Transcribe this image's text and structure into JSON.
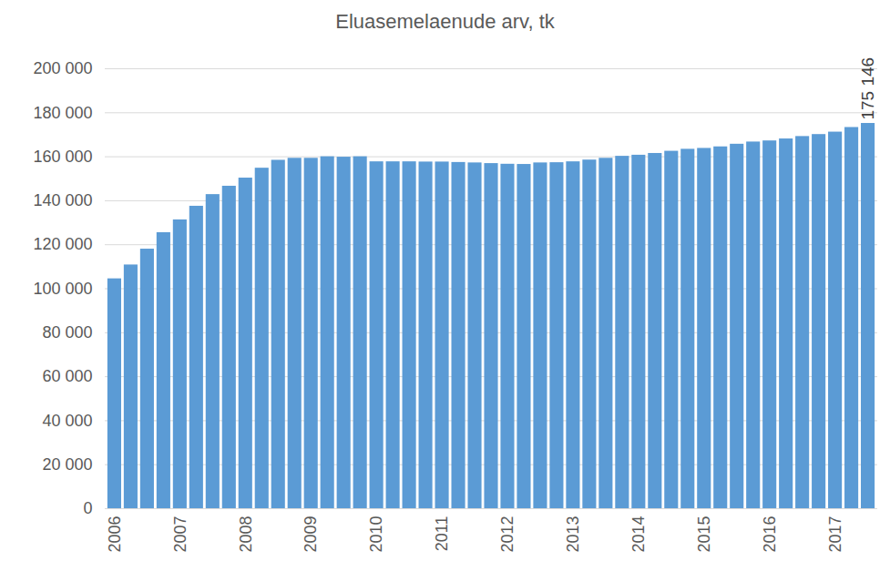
{
  "chart_data": {
    "type": "bar",
    "title": "Eluasemelaenude arv, tk",
    "categories": [
      "2006",
      null,
      null,
      null,
      "2007",
      null,
      null,
      null,
      "2008",
      null,
      null,
      null,
      "2009",
      null,
      null,
      null,
      "2010",
      null,
      null,
      null,
      "2011",
      null,
      null,
      null,
      "2012",
      null,
      null,
      null,
      "2013",
      null,
      null,
      null,
      "2014",
      null,
      null,
      null,
      "2015",
      null,
      null,
      null,
      "2016",
      null,
      null,
      null,
      "2017",
      null,
      null
    ],
    "values": [
      104500,
      110800,
      118000,
      125500,
      131300,
      137500,
      142800,
      146600,
      150300,
      154800,
      158400,
      159300,
      159300,
      160000,
      159800,
      160000,
      157700,
      157700,
      157700,
      157600,
      157600,
      157400,
      157200,
      156900,
      156600,
      156500,
      157200,
      157300,
      157700,
      158500,
      159300,
      160200,
      160700,
      161500,
      162500,
      163400,
      163800,
      164500,
      165700,
      166700,
      167200,
      168100,
      169200,
      170100,
      171200,
      173300,
      175146
    ],
    "value_labels": [
      null,
      null,
      null,
      null,
      null,
      null,
      null,
      null,
      null,
      null,
      null,
      null,
      null,
      null,
      null,
      null,
      null,
      null,
      null,
      null,
      null,
      null,
      null,
      null,
      null,
      null,
      null,
      null,
      null,
      null,
      null,
      null,
      null,
      null,
      null,
      null,
      null,
      null,
      null,
      null,
      null,
      null,
      null,
      null,
      null,
      null,
      "175 146"
    ],
    "data_labels": true,
    "color": "#5b9bd5",
    "ylim": [
      0,
      200000
    ],
    "yticks": [
      0,
      {
        "value": 20000,
        "label": "20 000"
      },
      {
        "value": 40000,
        "label": "40 000"
      },
      {
        "value": 60000,
        "label": "60 000"
      },
      {
        "value": 80000,
        "label": "80 000"
      },
      {
        "value": 100000,
        "label": "100 000"
      },
      {
        "value": 120000,
        "label": "120 000"
      },
      {
        "value": 140000,
        "label": "140 000"
      },
      {
        "value": 160000,
        "label": "160 000"
      },
      {
        "value": 180000,
        "label": "180 000"
      },
      {
        "value": 200000,
        "label": "200 000"
      }
    ],
    "grid": true
  }
}
